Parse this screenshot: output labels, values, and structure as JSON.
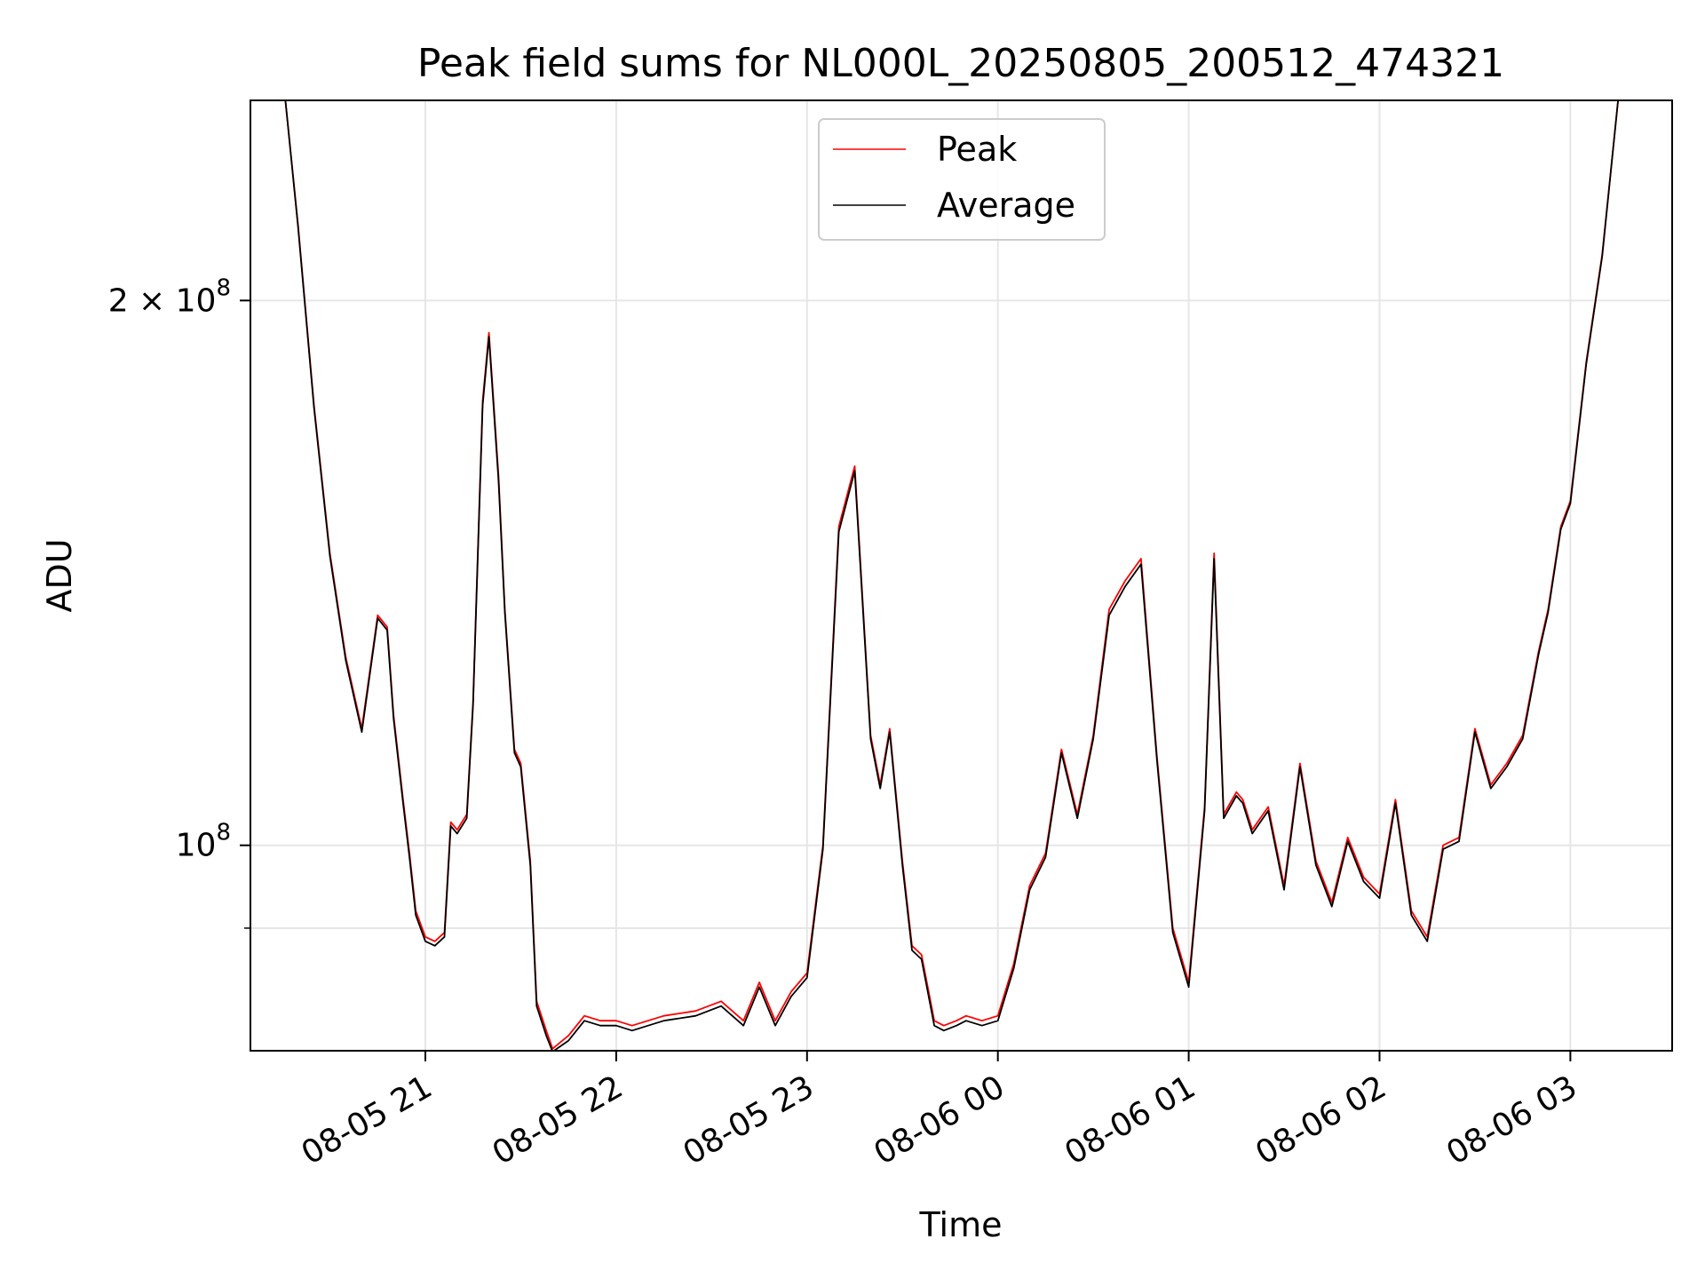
{
  "chart_data": {
    "type": "line",
    "title": "Peak field sums for NL000L_20250805_200512_474321",
    "xlabel": "Time",
    "ylabel": "ADU",
    "yscale": "log",
    "ylim": [
      77000000,
      258000000
    ],
    "xlim": [
      "2025-08-05 20:05",
      "2025-08-06 03:32"
    ],
    "grid": true,
    "legend_position": "top-center",
    "x_ticks": [
      {
        "value": "2025-08-05 21:00",
        "label": "08-05 21"
      },
      {
        "value": "2025-08-05 22:00",
        "label": "08-05 22"
      },
      {
        "value": "2025-08-05 23:00",
        "label": "08-05 23"
      },
      {
        "value": "2025-08-06 00:00",
        "label": "08-06 00"
      },
      {
        "value": "2025-08-06 01:00",
        "label": "08-06 01"
      },
      {
        "value": "2025-08-06 02:00",
        "label": "08-06 02"
      },
      {
        "value": "2025-08-06 03:00",
        "label": "08-06 03"
      }
    ],
    "y_ticks": [
      {
        "value": 200000000,
        "base": "2 × 10",
        "exp": "8"
      },
      {
        "value": 100000000,
        "base": "10",
        "exp": "8"
      }
    ],
    "y_minor_ticks": [
      90000000
    ],
    "colors": {
      "Peak": "#ff0000",
      "Average": "#000000"
    },
    "x": [
      "2025-08-05 20:16",
      "2025-08-05 20:20",
      "2025-08-05 20:25",
      "2025-08-05 20:30",
      "2025-08-05 20:35",
      "2025-08-05 20:40",
      "2025-08-05 20:45",
      "2025-08-05 20:48",
      "2025-08-05 20:50",
      "2025-08-05 20:53",
      "2025-08-05 20:55",
      "2025-08-05 20:57",
      "2025-08-05 21:00",
      "2025-08-05 21:03",
      "2025-08-05 21:06",
      "2025-08-05 21:08",
      "2025-08-05 21:10",
      "2025-08-05 21:13",
      "2025-08-05 21:15",
      "2025-08-05 21:18",
      "2025-08-05 21:20",
      "2025-08-05 21:23",
      "2025-08-05 21:25",
      "2025-08-05 21:28",
      "2025-08-05 21:30",
      "2025-08-05 21:33",
      "2025-08-05 21:35",
      "2025-08-05 21:38",
      "2025-08-05 21:40",
      "2025-08-05 21:45",
      "2025-08-05 21:50",
      "2025-08-05 21:55",
      "2025-08-05 22:00",
      "2025-08-05 22:05",
      "2025-08-05 22:15",
      "2025-08-05 22:25",
      "2025-08-05 22:33",
      "2025-08-05 22:40",
      "2025-08-05 22:45",
      "2025-08-05 22:50",
      "2025-08-05 22:55",
      "2025-08-05 23:00",
      "2025-08-05 23:05",
      "2025-08-05 23:10",
      "2025-08-05 23:15",
      "2025-08-05 23:20",
      "2025-08-05 23:23",
      "2025-08-05 23:26",
      "2025-08-05 23:30",
      "2025-08-05 23:33",
      "2025-08-05 23:36",
      "2025-08-05 23:40",
      "2025-08-05 23:43",
      "2025-08-05 23:47",
      "2025-08-05 23:50",
      "2025-08-05 23:55",
      "2025-08-06 00:00",
      "2025-08-06 00:05",
      "2025-08-06 00:10",
      "2025-08-06 00:15",
      "2025-08-06 00:20",
      "2025-08-06 00:25",
      "2025-08-06 00:30",
      "2025-08-06 00:35",
      "2025-08-06 00:40",
      "2025-08-06 00:45",
      "2025-08-06 00:50",
      "2025-08-06 00:55",
      "2025-08-06 01:00",
      "2025-08-06 01:05",
      "2025-08-06 01:08",
      "2025-08-06 01:11",
      "2025-08-06 01:15",
      "2025-08-06 01:17",
      "2025-08-06 01:20",
      "2025-08-06 01:25",
      "2025-08-06 01:30",
      "2025-08-06 01:35",
      "2025-08-06 01:40",
      "2025-08-06 01:45",
      "2025-08-06 01:50",
      "2025-08-06 01:55",
      "2025-08-06 02:00",
      "2025-08-06 02:05",
      "2025-08-06 02:10",
      "2025-08-06 02:15",
      "2025-08-06 02:20",
      "2025-08-06 02:25",
      "2025-08-06 02:30",
      "2025-08-06 02:35",
      "2025-08-06 02:40",
      "2025-08-06 02:45",
      "2025-08-06 02:50",
      "2025-08-06 02:53",
      "2025-08-06 02:57",
      "2025-08-06 03:00",
      "2025-08-06 03:05",
      "2025-08-06 03:10",
      "2025-08-06 03:15"
    ],
    "series": [
      {
        "name": "Peak",
        "values": [
          258000000,
          220000000,
          175000000,
          145000000,
          127000000,
          116000000,
          134000000,
          132000000,
          118000000,
          106000000,
          99000000,
          92000000,
          89000000,
          88500000,
          89500000,
          103000000,
          102000000,
          104000000,
          120000000,
          176000000,
          192000000,
          160000000,
          135000000,
          113000000,
          111000000,
          98000000,
          82000000,
          79000000,
          77200000,
          78500000,
          80500000,
          80000000,
          80000000,
          79500000,
          80500000,
          81000000,
          82000000,
          80000000,
          84000000,
          80000000,
          83000000,
          85000000,
          100000000,
          150000000,
          162000000,
          115000000,
          108000000,
          116000000,
          98000000,
          88000000,
          87000000,
          80000000,
          79500000,
          80000000,
          80500000,
          80000000,
          80500000,
          86000000,
          95000000,
          99000000,
          113000000,
          104000000,
          115000000,
          135000000,
          140000000,
          144000000,
          112000000,
          90000000,
          84000000,
          105000000,
          145000000,
          104000000,
          107000000,
          106000000,
          102000000,
          105000000,
          95000000,
          111000000,
          98000000,
          93000000,
          101000000,
          96000000,
          94000000,
          106000000,
          92000000,
          89000000,
          100000000,
          101000000,
          116000000,
          108000000,
          111000000,
          115000000,
          128000000,
          135000000,
          150000000,
          155000000,
          185000000,
          212000000,
          258000000
        ]
      },
      {
        "name": "Average",
        "values": [
          258000000,
          219500000,
          174500000,
          144500000,
          126500000,
          115500000,
          133500000,
          131500000,
          117500000,
          105500000,
          98500000,
          91500000,
          88500000,
          88000000,
          89000000,
          102500000,
          101500000,
          103500000,
          119500000,
          175000000,
          191000000,
          159000000,
          134500000,
          112500000,
          110500000,
          97500000,
          81500000,
          78500000,
          76900000,
          78000000,
          80000000,
          79500000,
          79500000,
          79000000,
          80000000,
          80500000,
          81500000,
          79500000,
          83500000,
          79500000,
          82500000,
          84500000,
          99500000,
          149000000,
          161000000,
          114500000,
          107500000,
          115500000,
          97500000,
          87500000,
          86500000,
          79500000,
          79000000,
          79500000,
          80000000,
          79500000,
          80000000,
          85500000,
          94500000,
          98500000,
          112500000,
          103500000,
          114500000,
          134000000,
          139000000,
          143000000,
          111500000,
          89500000,
          83500000,
          104500000,
          144000000,
          103500000,
          106500000,
          105500000,
          101500000,
          104500000,
          94500000,
          110500000,
          97500000,
          92500000,
          100500000,
          95500000,
          93500000,
          105500000,
          91500000,
          88500000,
          99500000,
          100500000,
          115500000,
          107500000,
          110500000,
          114500000,
          127500000,
          134500000,
          149500000,
          154500000,
          184500000,
          211500000,
          258000000
        ]
      }
    ]
  }
}
